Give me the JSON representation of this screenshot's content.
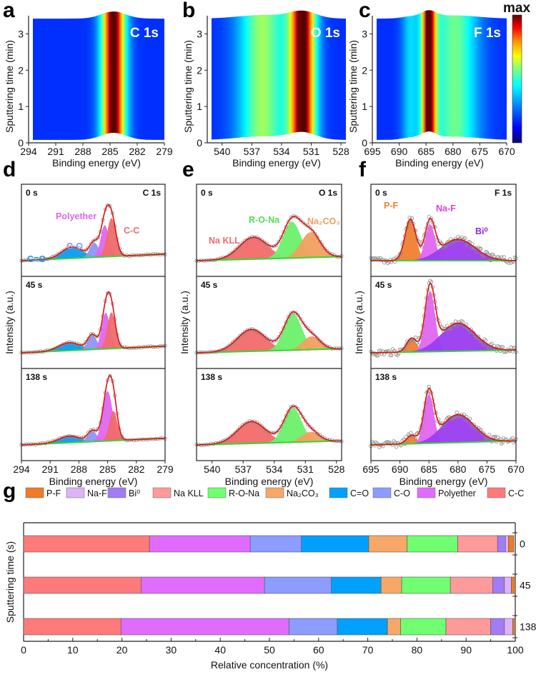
{
  "chart_data": [
    {
      "panel": "a",
      "type": "heatmap",
      "title": "C 1s",
      "xlabel": "Binding energy (eV)",
      "ylabel": "Sputtering time (min)",
      "xlim": [
        294,
        279
      ],
      "ylim": [
        0,
        3.5
      ],
      "xticks": [
        "294",
        "291",
        "288",
        "285",
        "282",
        "279"
      ],
      "yticks": [
        "0",
        "1",
        "2",
        "3"
      ],
      "peaks": [
        {
          "center": 284.8,
          "width": 1.0,
          "intensity": 1.0
        }
      ],
      "colorbar": {
        "label": "max"
      }
    },
    {
      "panel": "b",
      "type": "heatmap",
      "title": "O 1s",
      "xlabel": "Binding energy (eV)",
      "ylabel": "Sputtering time (min)",
      "xlim": [
        541.5,
        527.5
      ],
      "ylim": [
        0,
        3.5
      ],
      "xticks": [
        "540",
        "537",
        "534",
        "531",
        "528"
      ],
      "yticks": [
        "0",
        "1",
        "2",
        "3"
      ],
      "peaks": [
        {
          "center": 532.0,
          "width": 1.0,
          "intensity": 1.0
        },
        {
          "center": 536.2,
          "width": 1.8,
          "intensity": 0.5
        }
      ],
      "colorbar": {
        "label": "max"
      }
    },
    {
      "panel": "c",
      "type": "heatmap",
      "title": "F 1s",
      "xlabel": "Binding energy (eV)",
      "ylabel": "Sputtering time (min)",
      "xlim": [
        695,
        670
      ],
      "ylim": [
        0,
        3.5
      ],
      "xticks": [
        "695",
        "690",
        "685",
        "680",
        "675",
        "670"
      ],
      "yticks": [
        "0",
        "1",
        "2",
        "3"
      ],
      "peaks": [
        {
          "center": 685.0,
          "width": 1.0,
          "intensity": 0.92
        },
        {
          "center": 680.0,
          "width": 3.2,
          "intensity": 0.45
        },
        {
          "center": 688.5,
          "width": 1.2,
          "intensity": 0.25
        }
      ],
      "colorbar": {
        "label": "max",
        "colors": [
          "#0a0a6e",
          "#0000ff",
          "#00b4ff",
          "#00ffff",
          "#7fff7f",
          "#ffff00",
          "#ff8c00",
          "#ff0000",
          "#5a0000"
        ]
      }
    },
    {
      "panel": "d",
      "type": "line",
      "title": "C 1s",
      "xlabel": "Binding energy (eV)",
      "ylabel": "Intensity (a.u.)",
      "xlim": [
        294,
        279
      ],
      "xticks": [
        "294",
        "291",
        "288",
        "285",
        "282",
        "279"
      ],
      "components": [
        {
          "name": "C=O",
          "color": "#0a9bf0"
        },
        {
          "name": "C-O",
          "color": "#8c96f5"
        },
        {
          "name": "Polyether",
          "color": "#e066f0"
        },
        {
          "name": "C-C",
          "color": "#f06a6a"
        }
      ],
      "series": [
        {
          "name": "0 s",
          "peaks": [
            {
              "comp": "C=O",
              "center": 288.7,
              "fwhm": 2.6,
              "height": 0.17
            },
            {
              "comp": "C-O",
              "center": 286.4,
              "fwhm": 1.1,
              "height": 0.22
            },
            {
              "comp": "Polyether",
              "center": 285.3,
              "fwhm": 1.0,
              "height": 0.48
            },
            {
              "comp": "C-C",
              "center": 284.6,
              "fwhm": 1.1,
              "height": 0.58
            }
          ],
          "baseline": [
            0.0,
            -0.1
          ]
        },
        {
          "name": "45 s",
          "peaks": [
            {
              "comp": "C=O",
              "center": 289.0,
              "fwhm": 2.6,
              "height": 0.12
            },
            {
              "comp": "C-O",
              "center": 286.6,
              "fwhm": 1.1,
              "height": 0.22
            },
            {
              "comp": "Polyether",
              "center": 285.2,
              "fwhm": 1.0,
              "height": 0.55
            },
            {
              "comp": "C-C",
              "center": 284.6,
              "fwhm": 1.0,
              "height": 0.55
            }
          ],
          "baseline": [
            0.0,
            -0.1
          ]
        },
        {
          "name": "138 s",
          "peaks": [
            {
              "comp": "C=O",
              "center": 289.0,
              "fwhm": 2.6,
              "height": 0.1
            },
            {
              "comp": "C-O",
              "center": 286.6,
              "fwhm": 1.1,
              "height": 0.16
            },
            {
              "comp": "Polyether",
              "center": 285.0,
              "fwhm": 1.2,
              "height": 0.75
            },
            {
              "comp": "C-C",
              "center": 284.4,
              "fwhm": 1.0,
              "height": 0.45
            }
          ],
          "baseline": [
            0.0,
            -0.1
          ]
        }
      ],
      "labels": [
        "C=O",
        "C-O",
        "Polyether",
        "C-C"
      ]
    },
    {
      "panel": "e",
      "type": "line",
      "title": "O 1s",
      "xlabel": "Binding energy (eV)",
      "ylabel": "Intensity (a.u.)",
      "xlim": [
        541.5,
        527.5
      ],
      "xticks": [
        "540",
        "537",
        "534",
        "531",
        "528"
      ],
      "components": [
        {
          "name": "Na KLL",
          "color": "#f26a6a"
        },
        {
          "name": "R-O-Na",
          "color": "#6cf06c"
        },
        {
          "name": "Na2CO3",
          "display": "Na₂CO₃",
          "color": "#f2a060"
        }
      ],
      "series": [
        {
          "name": "0 s",
          "peaks": [
            {
              "comp": "Na KLL",
              "center": 536.0,
              "fwhm": 3.2,
              "height": 0.33
            },
            {
              "comp": "R-O-Na",
              "center": 532.3,
              "fwhm": 2.0,
              "height": 0.55
            },
            {
              "comp": "Na2CO3",
              "center": 530.5,
              "fwhm": 2.2,
              "height": 0.38
            }
          ],
          "baseline": [
            0.0,
            -0.06
          ]
        },
        {
          "name": "45 s",
          "peaks": [
            {
              "comp": "Na KLL",
              "center": 536.2,
              "fwhm": 3.2,
              "height": 0.33
            },
            {
              "comp": "R-O-Na",
              "center": 532.2,
              "fwhm": 2.0,
              "height": 0.55
            },
            {
              "comp": "Na2CO3",
              "center": 530.4,
              "fwhm": 2.0,
              "height": 0.2
            }
          ],
          "baseline": [
            0.0,
            -0.06
          ]
        },
        {
          "name": "138 s",
          "peaks": [
            {
              "comp": "Na KLL",
              "center": 536.2,
              "fwhm": 3.2,
              "height": 0.33
            },
            {
              "comp": "R-O-Na",
              "center": 532.2,
              "fwhm": 2.0,
              "height": 0.52
            },
            {
              "comp": "Na2CO3",
              "center": 530.5,
              "fwhm": 2.0,
              "height": 0.15
            }
          ],
          "baseline": [
            0.0,
            -0.06
          ]
        }
      ]
    },
    {
      "panel": "f",
      "type": "line",
      "title": "F 1s",
      "xlabel": "Binding energy (eV)",
      "ylabel": "Intensity (a.u.)",
      "xlim": [
        695,
        670
      ],
      "xticks": [
        "695",
        "690",
        "685",
        "680",
        "675",
        "670"
      ],
      "components": [
        {
          "name": "P-F",
          "color": "#f08030"
        },
        {
          "name": "Na-F",
          "color": "#e066f0"
        },
        {
          "name": "Bi0",
          "display": "Bi⁰",
          "color": "#9a3cf0"
        }
      ],
      "series": [
        {
          "name": "0 s",
          "peaks": [
            {
              "comp": "P-F",
              "center": 688.2,
              "fwhm": 2.2,
              "height": 0.62
            },
            {
              "comp": "Na-F",
              "center": 684.8,
              "fwhm": 2.0,
              "height": 0.55
            },
            {
              "comp": "Bi0",
              "center": 680.0,
              "fwhm": 7.0,
              "height": 0.32
            }
          ],
          "baseline": [
            0.0,
            0.0
          ]
        },
        {
          "name": "45 s",
          "peaks": [
            {
              "comp": "P-F",
              "center": 688.0,
              "fwhm": 2.0,
              "height": 0.2
            },
            {
              "comp": "Na-F",
              "center": 684.8,
              "fwhm": 2.0,
              "height": 0.92
            },
            {
              "comp": "Bi0",
              "center": 680.0,
              "fwhm": 7.0,
              "height": 0.42
            }
          ],
          "baseline": [
            0.0,
            -0.04
          ]
        },
        {
          "name": "138 s",
          "peaks": [
            {
              "comp": "P-F",
              "center": 688.0,
              "fwhm": 2.0,
              "height": 0.12
            },
            {
              "comp": "Na-F",
              "center": 685.0,
              "fwhm": 2.0,
              "height": 0.75
            },
            {
              "comp": "Bi0",
              "center": 680.0,
              "fwhm": 6.5,
              "height": 0.42
            }
          ],
          "baseline": [
            0.0,
            -0.06
          ]
        }
      ]
    },
    {
      "panel": "g",
      "type": "bar",
      "orientation": "horizontal",
      "stacked": true,
      "xlabel": "Relative concentration (%)",
      "ylabel": "Sputtering time (s)",
      "xlim": [
        0,
        100
      ],
      "xticks": [
        "0",
        "10",
        "20",
        "30",
        "40",
        "50",
        "60",
        "70",
        "80",
        "90",
        "100"
      ],
      "categories": [
        "0",
        "45",
        "138"
      ],
      "legend": {
        "placement": "top",
        "entries": [
          {
            "name": "P-F",
            "color": "#f07a28"
          },
          {
            "name": "Na-F",
            "color": "#dcb4f8"
          },
          {
            "name": "Bi0",
            "display": "Bi⁰",
            "color": "#a27cf5"
          },
          {
            "name": "Na KLL",
            "color": "#ff9a9a"
          },
          {
            "name": "R-O-Na",
            "color": "#70ff70"
          },
          {
            "name": "Na2CO3",
            "display": "Na₂CO₃",
            "color": "#f6a868"
          },
          {
            "name": "C=O",
            "color": "#00a0ff"
          },
          {
            "name": "C-O",
            "color": "#8c9cff"
          },
          {
            "name": "Polyether",
            "color": "#e06cff"
          },
          {
            "name": "C-C",
            "color": "#ff7a7a"
          }
        ]
      },
      "series": [
        {
          "name": "C-C",
          "values": [
            25.6,
            23.9,
            19.8
          ]
        },
        {
          "name": "Polyether",
          "values": [
            20.5,
            25.1,
            34.2
          ]
        },
        {
          "name": "C-O",
          "values": [
            10.4,
            13.6,
            9.8
          ]
        },
        {
          "name": "C=O",
          "values": [
            13.7,
            10.1,
            10.2
          ]
        },
        {
          "name": "Na2CO3",
          "values": [
            7.8,
            4.2,
            2.7
          ]
        },
        {
          "name": "R-O-Na",
          "values": [
            10.3,
            9.9,
            9.2
          ]
        },
        {
          "name": "Na KLL",
          "values": [
            8.1,
            8.6,
            9.1
          ]
        },
        {
          "name": "Bi0",
          "values": [
            1.6,
            2.4,
            2.8
          ]
        },
        {
          "name": "Na-F",
          "values": [
            0.6,
            1.4,
            1.7
          ]
        },
        {
          "name": "P-F",
          "values": [
            1.1,
            0.8,
            0.5
          ]
        }
      ]
    }
  ],
  "panel_labels": [
    "a",
    "b",
    "c",
    "d",
    "e",
    "f",
    "g"
  ],
  "colorbar_label": "max"
}
